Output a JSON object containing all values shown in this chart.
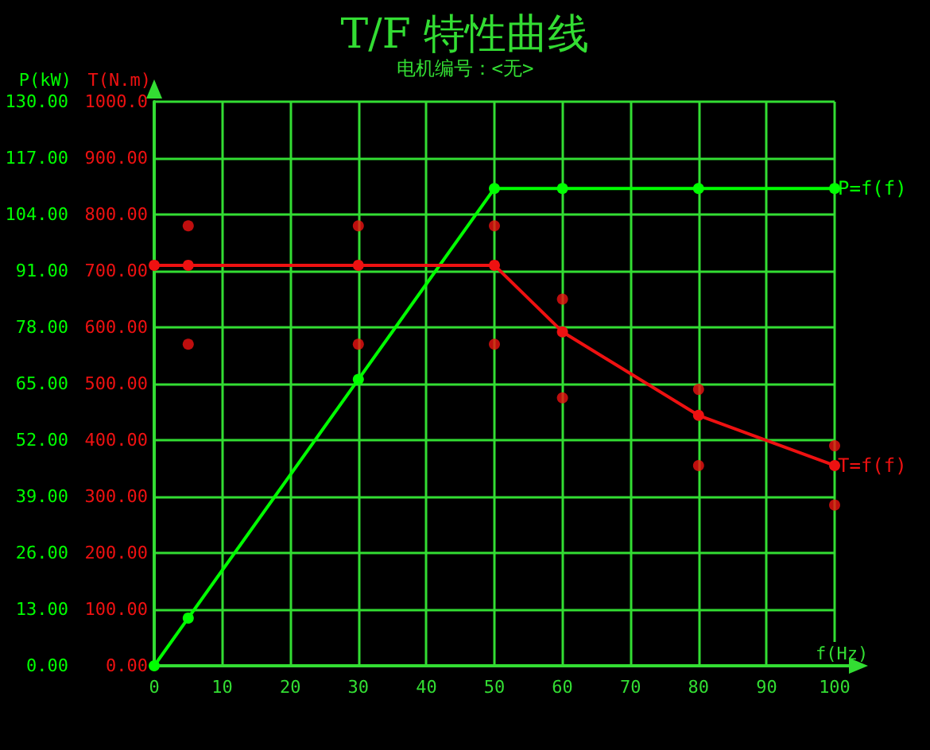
{
  "chart_data": {
    "type": "line",
    "title": "T/F 特性曲线",
    "subtitle": "电机编号：<无>",
    "xlabel": "f(Hz)",
    "ylabel": "P(kW)",
    "y2label": "T(N.m)",
    "xlim": [
      0,
      100
    ],
    "xticks": [
      0,
      10,
      20,
      30,
      40,
      50,
      60,
      70,
      80,
      90,
      100
    ],
    "ylim": [
      0,
      130
    ],
    "yticks": [
      {
        "value": 0,
        "label": "0.00"
      },
      {
        "value": 13,
        "label": "13.00"
      },
      {
        "value": 26,
        "label": "26.00"
      },
      {
        "value": 39,
        "label": "39.00"
      },
      {
        "value": 52,
        "label": "52.00"
      },
      {
        "value": 65,
        "label": "65.00"
      },
      {
        "value": 78,
        "label": "78.00"
      },
      {
        "value": 91,
        "label": "91.00"
      },
      {
        "value": 104,
        "label": "104.00"
      },
      {
        "value": 117,
        "label": "117.00"
      },
      {
        "value": 130,
        "label": "130.00"
      }
    ],
    "y2lim": [
      0,
      1000
    ],
    "y2ticks": [
      {
        "value": 0,
        "label": "0.00"
      },
      {
        "value": 100,
        "label": "100.00"
      },
      {
        "value": 200,
        "label": "200.00"
      },
      {
        "value": 300,
        "label": "300.00"
      },
      {
        "value": 400,
        "label": "400.00"
      },
      {
        "value": 500,
        "label": "500.00"
      },
      {
        "value": 600,
        "label": "600.00"
      },
      {
        "value": 700,
        "label": "700.00"
      },
      {
        "value": 800,
        "label": "800.00"
      },
      {
        "value": 900,
        "label": "900.00"
      },
      {
        "value": 1000,
        "label": "1000.0"
      }
    ],
    "grid": true,
    "marker": "circle",
    "line_style": "solid",
    "legend": false,
    "series": [
      {
        "name": "P=f(f)",
        "color": "#00ff00",
        "x": [
          0,
          5,
          30,
          50,
          60,
          80,
          100
        ],
        "values": [
          0,
          11,
          66,
          110,
          110,
          110,
          110
        ]
      },
      {
        "name": "T=f(f)",
        "color": "#ee1111",
        "axis": "y2",
        "x": [
          0,
          5,
          30,
          50,
          60,
          80,
          100
        ],
        "values": [
          710,
          710,
          710,
          710,
          592,
          444,
          355
        ]
      },
      {
        "type": "scatter",
        "color": "#ee1111",
        "axis": "y2",
        "x": [
          5,
          5,
          30,
          30,
          50,
          50,
          60,
          60,
          80,
          80,
          100,
          100
        ],
        "values": [
          780,
          570,
          780,
          570,
          780,
          570,
          650,
          475,
          490,
          355,
          390,
          285
        ]
      }
    ]
  }
}
